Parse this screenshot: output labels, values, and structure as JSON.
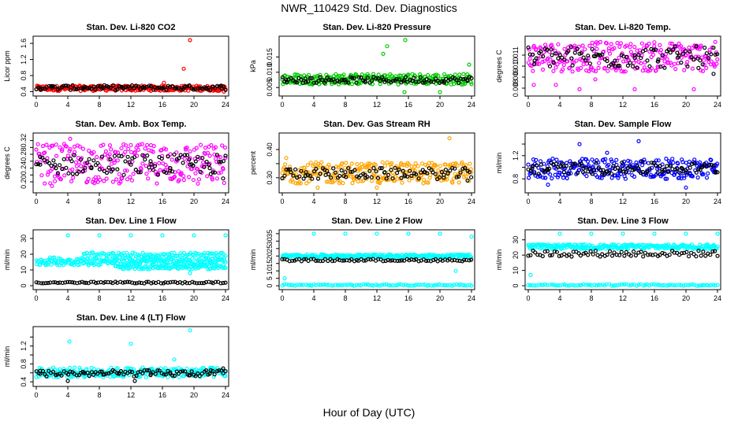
{
  "figure": {
    "title": "NWR_110429  Std. Dev. Diagnostics",
    "xlabel": "Hour of Day (UTC)"
  },
  "colors": {
    "black": "#000000",
    "red": "#ff0000",
    "green": "#00cc00",
    "magenta": "#ff00ff",
    "orange": "#ffa500",
    "blue": "#0000ff",
    "cyan": "#00ffff"
  },
  "chart_data": [
    {
      "type": "scatter",
      "title": "Stan. Dev. Li-820 CO2",
      "xlabel": "",
      "ylabel": "Licor ppm",
      "xlim": [
        0,
        24
      ],
      "ylim": [
        0.35,
        1.72
      ],
      "xticks": [
        0,
        4,
        8,
        12,
        16,
        20,
        24
      ],
      "xtick_labels": [
        "0",
        "4",
        "8",
        "12",
        "16",
        "20",
        "24"
      ],
      "yticks": [
        0.4,
        0.8,
        1.2,
        1.6
      ],
      "ytick_labels": [
        "0.4",
        "0.8",
        "1.2",
        "1.6"
      ],
      "series": [
        {
          "color": "#ff0000",
          "band": [
            0.42,
            0.55
          ],
          "outliers": [
            [
              18.7,
              0.97
            ],
            [
              19.5,
              1.68
            ],
            [
              16.2,
              0.62
            ],
            [
              23.8,
              0.4
            ]
          ]
        },
        {
          "color": "#000000",
          "band": [
            0.44,
            0.56
          ],
          "points": [
            [
              0.5,
              0.48
            ],
            [
              2,
              0.5
            ],
            [
              3.8,
              0.55
            ],
            [
              6,
              0.5
            ],
            [
              8.5,
              0.49
            ],
            [
              11,
              0.5
            ],
            [
              13.5,
              0.49
            ],
            [
              16,
              0.48
            ],
            [
              18.5,
              0.5
            ],
            [
              21.5,
              0.49
            ],
            [
              23.5,
              0.48
            ]
          ]
        }
      ]
    },
    {
      "type": "scatter",
      "title": "Stan. Dev. Li-820 Pressure",
      "xlabel": "",
      "ylabel": "kPa",
      "xlim": [
        0,
        24
      ],
      "ylim": [
        0.003,
        0.021
      ],
      "xticks": [
        0,
        4,
        8,
        12,
        16,
        20,
        24
      ],
      "xtick_labels": [
        "0",
        "4",
        "8",
        "12",
        "16",
        "20",
        "24"
      ],
      "yticks": [
        0.005,
        0.01,
        0.015
      ],
      "ytick_labels": [
        "0.005",
        "0.010",
        "0.015"
      ],
      "series": [
        {
          "color": "#00cc00",
          "band": [
            0.006,
            0.0095
          ],
          "outliers": [
            [
              12.8,
              0.016
            ],
            [
              13.3,
              0.0185
            ],
            [
              15.6,
              0.0205
            ],
            [
              23.7,
              0.0125
            ],
            [
              15.5,
              0.0035
            ],
            [
              20,
              0.0035
            ]
          ]
        },
        {
          "color": "#000000",
          "band": [
            0.0065,
            0.0085
          ],
          "points": [
            [
              0.5,
              0.0075
            ],
            [
              3,
              0.0068
            ],
            [
              5.5,
              0.0072
            ],
            [
              8,
              0.0075
            ],
            [
              10.5,
              0.0072
            ],
            [
              13,
              0.0068
            ],
            [
              15.5,
              0.0075
            ],
            [
              18,
              0.0072
            ],
            [
              20.5,
              0.007
            ],
            [
              23.5,
              0.0072
            ]
          ]
        }
      ]
    },
    {
      "type": "scatter",
      "title": "Stan. Dev. Li-820 Temp.",
      "xlabel": "",
      "ylabel": "degrees C",
      "xlim": [
        0,
        24
      ],
      "ylim": [
        0.0075,
        0.0125
      ],
      "xticks": [
        0,
        4,
        8,
        12,
        16,
        20,
        24
      ],
      "xtick_labels": [
        "0",
        "4",
        "8",
        "12",
        "16",
        "20",
        "24"
      ],
      "yticks": [
        0.008,
        0.009,
        0.01,
        0.011
      ],
      "ytick_labels": [
        "0.008",
        "0.009",
        "0.010",
        "0.011"
      ],
      "series": [
        {
          "color": "#ff00ff",
          "band": [
            0.0095,
            0.0122
          ],
          "outliers": [
            [
              0.7,
              0.0083
            ],
            [
              3.5,
              0.0083
            ],
            [
              6.5,
              0.0079
            ],
            [
              13.5,
              0.0079
            ],
            [
              21,
              0.0079
            ],
            [
              8.5,
              0.0088
            ]
          ]
        },
        {
          "color": "#000000",
          "band": [
            0.0098,
            0.0118
          ],
          "points": [
            [
              0.8,
              0.0105
            ],
            [
              3,
              0.011
            ],
            [
              5.5,
              0.0107
            ],
            [
              8.5,
              0.0109
            ],
            [
              11,
              0.0105
            ],
            [
              13.5,
              0.011
            ],
            [
              16.5,
              0.0106
            ],
            [
              19,
              0.0108
            ],
            [
              21.5,
              0.0107
            ],
            [
              23.5,
              0.0093
            ]
          ]
        }
      ]
    },
    {
      "type": "scatter",
      "title": "Stan. Dev. Amb. Box Temp.",
      "xlabel": "",
      "ylabel": "degrees C",
      "xlim": [
        0,
        24
      ],
      "ylim": [
        0.175,
        0.335
      ],
      "xticks": [
        0,
        4,
        8,
        12,
        16,
        20,
        24
      ],
      "xtick_labels": [
        "0",
        "4",
        "8",
        "12",
        "16",
        "20",
        "24"
      ],
      "yticks": [
        0.2,
        0.22,
        0.24,
        0.26,
        0.28,
        0.3,
        0.32
      ],
      "ytick_labels": [
        "0.20",
        "",
        "0.24",
        "",
        "0.28",
        "",
        "0.32"
      ],
      "series": [
        {
          "color": "#ff00ff",
          "band": [
            0.195,
            0.31
          ],
          "outliers": [
            [
              4.3,
              0.325
            ],
            [
              2,
              0.188
            ],
            [
              20.5,
              0.195
            ]
          ]
        },
        {
          "color": "#000000",
          "band": [
            0.22,
            0.28
          ],
          "points": [
            [
              0.5,
              0.25
            ],
            [
              2.5,
              0.24
            ],
            [
              4.5,
              0.26
            ],
            [
              7,
              0.24
            ],
            [
              9.5,
              0.23
            ],
            [
              12,
              0.25
            ],
            [
              14.5,
              0.26
            ],
            [
              17,
              0.24
            ],
            [
              19.5,
              0.25
            ],
            [
              22,
              0.24
            ],
            [
              23.7,
              0.21
            ]
          ]
        }
      ]
    },
    {
      "type": "scatter",
      "title": "Stan. Dev. Gas Stream RH",
      "xlabel": "",
      "ylabel": "percent",
      "xlim": [
        0,
        24
      ],
      "ylim": [
        0.255,
        0.45
      ],
      "xticks": [
        0,
        4,
        8,
        12,
        16,
        20,
        24
      ],
      "xtick_labels": [
        "0",
        "4",
        "8",
        "12",
        "16",
        "20",
        "24"
      ],
      "yticks": [
        0.3,
        0.35,
        0.4
      ],
      "ytick_labels": [
        "0.30",
        "",
        "0.40"
      ],
      "series": [
        {
          "color": "#ffa500",
          "band": [
            0.28,
            0.355
          ],
          "outliers": [
            [
              21.2,
              0.44
            ],
            [
              0.5,
              0.37
            ],
            [
              4.5,
              0.265
            ],
            [
              12,
              0.265
            ]
          ]
        },
        {
          "color": "#000000",
          "band": [
            0.295,
            0.335
          ],
          "points": [
            [
              1,
              0.33
            ],
            [
              3,
              0.32
            ],
            [
              5.5,
              0.31
            ],
            [
              8,
              0.32
            ],
            [
              10.5,
              0.31
            ],
            [
              13,
              0.32
            ],
            [
              15.5,
              0.31
            ],
            [
              18,
              0.32
            ],
            [
              20.5,
              0.3
            ],
            [
              23.5,
              0.29
            ]
          ]
        }
      ]
    },
    {
      "type": "scatter",
      "title": "Stan. Dev. Sample Flow",
      "xlabel": "",
      "ylabel": "ml/min",
      "xlim": [
        0,
        24
      ],
      "ylim": [
        0.6,
        1.55
      ],
      "xticks": [
        0,
        4,
        8,
        12,
        16,
        20,
        24
      ],
      "xtick_labels": [
        "0",
        "4",
        "8",
        "12",
        "16",
        "20",
        "24"
      ],
      "yticks": [
        0.8,
        1,
        1.2,
        1.4
      ],
      "ytick_labels": [
        "0.8",
        "",
        "1.2",
        ""
      ],
      "series": [
        {
          "color": "#0000ff",
          "band": [
            0.8,
            1.15
          ],
          "outliers": [
            [
              6.5,
              1.4
            ],
            [
              14,
              1.45
            ],
            [
              10,
              1.25
            ],
            [
              20,
              0.65
            ],
            [
              2.5,
              0.7
            ]
          ]
        },
        {
          "color": "#000000",
          "band": [
            0.88,
            1.08
          ],
          "points": [
            [
              0.5,
              0.98
            ],
            [
              2.5,
              0.95
            ],
            [
              4.5,
              1.02
            ],
            [
              7,
              0.98
            ],
            [
              9.5,
              0.95
            ],
            [
              12,
              0.97
            ],
            [
              14.5,
              1.1
            ],
            [
              17,
              0.95
            ],
            [
              19.5,
              0.98
            ],
            [
              22,
              1.0
            ],
            [
              23.7,
              0.92
            ]
          ]
        }
      ]
    },
    {
      "type": "scatter",
      "title": "Stan. Dev. Line 1 Flow",
      "xlabel": "",
      "ylabel": "ml/min",
      "xlim": [
        0,
        24
      ],
      "ylim": [
        -1,
        34
      ],
      "xticks": [
        0,
        4,
        8,
        12,
        16,
        20,
        24
      ],
      "xtick_labels": [
        "0",
        "4",
        "8",
        "12",
        "16",
        "20",
        "24"
      ],
      "yticks": [
        0,
        10,
        20,
        30
      ],
      "ytick_labels": [
        "0",
        "10",
        "20",
        "30"
      ],
      "series": [
        {
          "color": "#00ffff",
          "band": [
            13,
            18
          ],
          "outliers": [
            [
              4,
              32
            ],
            [
              8,
              32
            ],
            [
              12,
              32
            ],
            [
              16,
              32
            ],
            [
              20,
              32
            ],
            [
              24,
              32
            ],
            [
              19.5,
              8
            ]
          ]
        },
        {
          "color": "#00ffff",
          "band": [
            18.5,
            21
          ],
          "range": [
            6,
            24
          ]
        },
        {
          "color": "#00ffff",
          "band": [
            10.5,
            13
          ],
          "range": [
            10,
            24
          ]
        },
        {
          "color": "#000000",
          "band": [
            1.5,
            2.5
          ],
          "points": "line"
        }
      ]
    },
    {
      "type": "scatter",
      "title": "Stan. Dev. Line 2 Flow",
      "xlabel": "",
      "ylabel": "ml/min",
      "xlim": [
        0,
        24
      ],
      "ylim": [
        -1,
        36
      ],
      "xticks": [
        0,
        4,
        8,
        12,
        16,
        20,
        24
      ],
      "xtick_labels": [
        "0",
        "4",
        "8",
        "12",
        "16",
        "20",
        "24"
      ],
      "yticks": [
        0,
        5,
        10,
        15,
        20,
        25,
        30,
        35
      ],
      "ytick_labels": [
        "0",
        "5",
        "10",
        "15",
        "20",
        "25",
        "30",
        "35"
      ],
      "series": [
        {
          "color": "#00ffff",
          "band": [
            19,
            21
          ],
          "outliers": [
            [
              4,
              35
            ],
            [
              8,
              35
            ],
            [
              12,
              35
            ],
            [
              16,
              35
            ],
            [
              20,
              35
            ],
            [
              24,
              33
            ],
            [
              0.3,
              5
            ],
            [
              22,
              10
            ]
          ]
        },
        {
          "color": "#00ffff",
          "band": [
            0,
            1
          ],
          "range": [
            0,
            24
          ]
        },
        {
          "color": "#000000",
          "band": [
            16.5,
            18
          ],
          "points": "line"
        }
      ]
    },
    {
      "type": "scatter",
      "title": "Stan. Dev. Line 3 Flow",
      "xlabel": "",
      "ylabel": "ml/min",
      "xlim": [
        0,
        24
      ],
      "ylim": [
        -1,
        35
      ],
      "xticks": [
        0,
        4,
        8,
        12,
        16,
        20,
        24
      ],
      "xtick_labels": [
        "0",
        "4",
        "8",
        "12",
        "16",
        "20",
        "24"
      ],
      "yticks": [
        0,
        10,
        20,
        30
      ],
      "ytick_labels": [
        "0",
        "10",
        "20",
        "30"
      ],
      "series": [
        {
          "color": "#00ffff",
          "band": [
            24,
            27
          ],
          "outliers": [
            [
              4,
              34
            ],
            [
              8,
              34
            ],
            [
              12,
              34
            ],
            [
              16,
              34
            ],
            [
              20,
              34
            ],
            [
              24,
              34
            ],
            [
              0.3,
              7
            ]
          ]
        },
        {
          "color": "#00ffff",
          "band": [
            0,
            1
          ],
          "range": [
            0,
            24
          ]
        },
        {
          "color": "#000000",
          "band": [
            19,
            23
          ],
          "points": "line"
        }
      ]
    },
    {
      "type": "scatter",
      "title": "Stan. Dev. Line 4 (LT) Flow",
      "xlabel": "",
      "ylabel": "ml/min",
      "xlim": [
        0,
        24
      ],
      "ylim": [
        0.35,
        1.58
      ],
      "xticks": [
        0,
        4,
        8,
        12,
        16,
        20,
        24
      ],
      "xtick_labels": [
        "0",
        "4",
        "8",
        "12",
        "16",
        "20",
        "24"
      ],
      "yticks": [
        0.4,
        0.6,
        0.8,
        1,
        1.2,
        1.4
      ],
      "ytick_labels": [
        "0.4",
        "",
        "0.8",
        "",
        "1.2",
        ""
      ],
      "series": [
        {
          "color": "#00ffff",
          "band": [
            0.5,
            0.72
          ],
          "outliers": [
            [
              4.2,
              1.3
            ],
            [
              12,
              1.25
            ],
            [
              17.5,
              0.9
            ],
            [
              19.5,
              1.55
            ]
          ]
        },
        {
          "color": "#000000",
          "band": [
            0.52,
            0.66
          ],
          "points": [
            [
              0.5,
              0.58
            ],
            [
              2.5,
              0.55
            ],
            [
              4,
              0.42
            ],
            [
              6,
              0.6
            ],
            [
              8.5,
              0.56
            ],
            [
              10.5,
              0.6
            ],
            [
              12.5,
              0.42
            ],
            [
              14.5,
              0.55
            ],
            [
              17,
              0.58
            ],
            [
              19.5,
              0.55
            ],
            [
              22,
              0.58
            ],
            [
              23.7,
              0.7
            ]
          ]
        }
      ]
    }
  ]
}
